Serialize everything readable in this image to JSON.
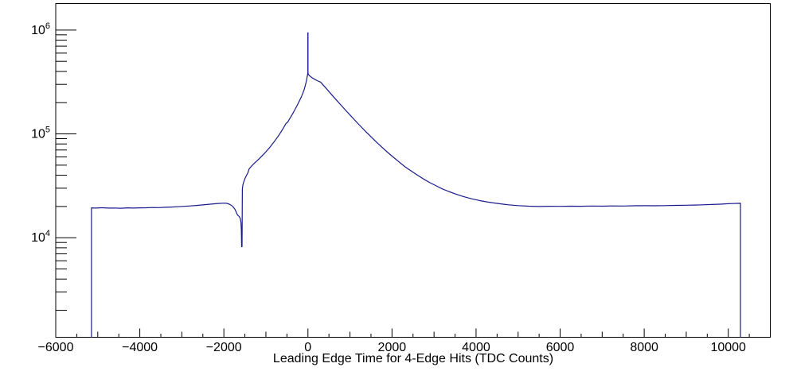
{
  "window": {
    "background": "#ffffff"
  },
  "chart_data": {
    "type": "line",
    "title": "",
    "xlabel": "Leading Edge Time for 4-Edge Hits (TDC Counts)",
    "ylabel": "",
    "legend": "none",
    "grid": false,
    "y_scale": "log",
    "xlim": [
      -6000,
      11000
    ],
    "ylim": [
      1100,
      1800000
    ],
    "x_major_step": 2000,
    "x_medium_step": 1000,
    "x_minor_step": 500,
    "x_ticks": [
      {
        "value": -6000,
        "label": "−6000"
      },
      {
        "value": -4000,
        "label": "−4000"
      },
      {
        "value": -2000,
        "label": "−2000"
      },
      {
        "value": 0,
        "label": "0"
      },
      {
        "value": 2000,
        "label": "2000"
      },
      {
        "value": 4000,
        "label": "4000"
      },
      {
        "value": 6000,
        "label": "6000"
      },
      {
        "value": 8000,
        "label": "8000"
      },
      {
        "value": 10000,
        "label": "10000"
      }
    ],
    "y_ticks": [
      {
        "value": 10000,
        "base": "10",
        "exp": "4"
      },
      {
        "value": 100000,
        "base": "10",
        "exp": "5"
      },
      {
        "value": 1000000,
        "base": "10",
        "exp": "6"
      }
    ],
    "axis_color": "#000000",
    "line_color": "#19198c",
    "histogram_range": [
      -5150,
      10290
    ],
    "spike": {
      "x": 0,
      "base": 390000,
      "top": 950000
    },
    "notch": {
      "x": -1572,
      "bottom": 8200
    },
    "points": [
      [
        -5150,
        1100
      ],
      [
        -5150,
        19400
      ],
      [
        -5050,
        19300
      ],
      [
        -4900,
        19450
      ],
      [
        -4750,
        19300
      ],
      [
        -4600,
        19350
      ],
      [
        -4450,
        19250
      ],
      [
        -4300,
        19400
      ],
      [
        -4150,
        19300
      ],
      [
        -4000,
        19400
      ],
      [
        -3850,
        19450
      ],
      [
        -3700,
        19550
      ],
      [
        -3550,
        19500
      ],
      [
        -3400,
        19650
      ],
      [
        -3250,
        19750
      ],
      [
        -3100,
        19900
      ],
      [
        -2950,
        20050
      ],
      [
        -2800,
        20250
      ],
      [
        -2650,
        20450
      ],
      [
        -2500,
        20700
      ],
      [
        -2350,
        21000
      ],
      [
        -2200,
        21250
      ],
      [
        -2100,
        21400
      ],
      [
        -2000,
        21550
      ],
      [
        -1930,
        21450
      ],
      [
        -1870,
        21050
      ],
      [
        -1820,
        20500
      ],
      [
        -1780,
        19800
      ],
      [
        -1740,
        18900
      ],
      [
        -1710,
        17800
      ],
      [
        -1690,
        17000
      ],
      [
        -1670,
        16500
      ],
      [
        -1650,
        16200
      ],
      [
        -1630,
        15900
      ],
      [
        -1610,
        15300
      ],
      [
        -1595,
        14200
      ],
      [
        -1585,
        12000
      ],
      [
        -1578,
        8200
      ],
      [
        -1567,
        8200
      ],
      [
        -1560,
        29500
      ],
      [
        -1548,
        32000
      ],
      [
        -1530,
        34200
      ],
      [
        -1508,
        36300
      ],
      [
        -1485,
        38200
      ],
      [
        -1460,
        40000
      ],
      [
        -1430,
        42100
      ],
      [
        -1400,
        46000
      ],
      [
        -1368,
        47600
      ],
      [
        -1336,
        49200
      ],
      [
        -1304,
        50800
      ],
      [
        -1270,
        52400
      ],
      [
        -1235,
        54000
      ],
      [
        -1200,
        55700
      ],
      [
        -1160,
        57700
      ],
      [
        -1120,
        59800
      ],
      [
        -1080,
        62100
      ],
      [
        -1040,
        64600
      ],
      [
        -1000,
        67300
      ],
      [
        -960,
        70200
      ],
      [
        -920,
        73300
      ],
      [
        -880,
        76700
      ],
      [
        -840,
        80400
      ],
      [
        -800,
        84400
      ],
      [
        -760,
        88800
      ],
      [
        -720,
        93600
      ],
      [
        -680,
        98900
      ],
      [
        -640,
        104800
      ],
      [
        -600,
        111300
      ],
      [
        -560,
        118500
      ],
      [
        -520,
        126500
      ],
      [
        -480,
        130000
      ],
      [
        -440,
        138500
      ],
      [
        -400,
        147500
      ],
      [
        -360,
        157500
      ],
      [
        -320,
        168500
      ],
      [
        -280,
        180500
      ],
      [
        -240,
        194000
      ],
      [
        -200,
        209000
      ],
      [
        -160,
        226000
      ],
      [
        -120,
        247000
      ],
      [
        -90,
        267000
      ],
      [
        -60,
        295000
      ],
      [
        -40,
        320000
      ],
      [
        -25,
        342000
      ],
      [
        -12,
        365000
      ],
      [
        0,
        390000
      ],
      [
        12,
        373000
      ],
      [
        50,
        360000
      ],
      [
        100,
        347000
      ],
      [
        160,
        336000
      ],
      [
        220,
        326000
      ],
      [
        300,
        315500
      ],
      [
        400,
        284700
      ],
      [
        500,
        255700
      ],
      [
        600,
        229900
      ],
      [
        700,
        207100
      ],
      [
        800,
        186600
      ],
      [
        900,
        168400
      ],
      [
        1000,
        152100
      ],
      [
        1100,
        137600
      ],
      [
        1200,
        124700
      ],
      [
        1300,
        113200
      ],
      [
        1400,
        103000
      ],
      [
        1500,
        93900
      ],
      [
        1600,
        85700
      ],
      [
        1700,
        78500
      ],
      [
        1800,
        72000
      ],
      [
        1900,
        66200
      ],
      [
        2000,
        61100
      ],
      [
        2150,
        54400
      ],
      [
        2300,
        48600
      ],
      [
        2450,
        44100
      ],
      [
        2600,
        40200
      ],
      [
        2750,
        36800
      ],
      [
        2900,
        33900
      ],
      [
        3050,
        31600
      ],
      [
        3200,
        29500
      ],
      [
        3350,
        27900
      ],
      [
        3500,
        26500
      ],
      [
        3700,
        24900
      ],
      [
        3900,
        23700
      ],
      [
        4100,
        22750
      ],
      [
        4300,
        22000
      ],
      [
        4500,
        21400
      ],
      [
        4750,
        20800
      ],
      [
        5000,
        20400
      ],
      [
        5250,
        20150
      ],
      [
        5500,
        20000
      ],
      [
        5750,
        20100
      ],
      [
        6000,
        20050
      ],
      [
        6250,
        20150
      ],
      [
        6500,
        20100
      ],
      [
        6750,
        20200
      ],
      [
        7000,
        20150
      ],
      [
        7250,
        20250
      ],
      [
        7500,
        20200
      ],
      [
        7750,
        20300
      ],
      [
        8000,
        20350
      ],
      [
        8250,
        20300
      ],
      [
        8500,
        20400
      ],
      [
        8750,
        20500
      ],
      [
        9000,
        20550
      ],
      [
        9200,
        20650
      ],
      [
        9400,
        20750
      ],
      [
        9600,
        20900
      ],
      [
        9800,
        21050
      ],
      [
        10000,
        21250
      ],
      [
        10100,
        21350
      ],
      [
        10200,
        21400
      ],
      [
        10290,
        21450
      ],
      [
        10290,
        1100
      ]
    ]
  }
}
